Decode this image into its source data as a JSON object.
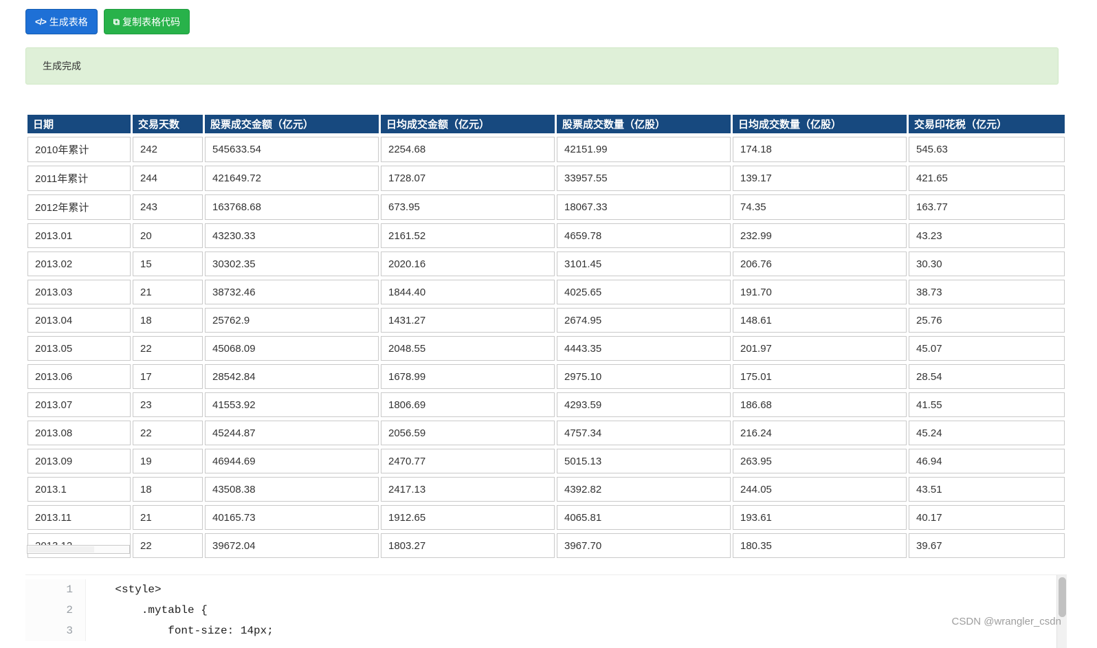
{
  "toolbar": {
    "generate_icon": "</>",
    "generate_label": "生成表格",
    "copy_icon": "⧉",
    "copy_label": "复制表格代码"
  },
  "alert": {
    "message": "生成完成"
  },
  "table": {
    "headers": [
      "日期",
      "交易天数",
      "股票成交金额（亿元）",
      "日均成交金额（亿元）",
      "股票成交数量（亿股）",
      "日均成交数量（亿股）",
      "交易印花税（亿元）"
    ],
    "rows": [
      [
        "2010年累计",
        "242",
        "545633.54",
        "2254.68",
        "42151.99",
        "174.18",
        "545.63"
      ],
      [
        "2011年累计",
        "244",
        "421649.72",
        "1728.07",
        "33957.55",
        "139.17",
        "421.65"
      ],
      [
        "2012年累计",
        "243",
        "163768.68",
        "673.95",
        "18067.33",
        "74.35",
        "163.77"
      ],
      [
        "2013.01",
        "20",
        "43230.33",
        "2161.52",
        "4659.78",
        "232.99",
        "43.23"
      ],
      [
        "2013.02",
        "15",
        "30302.35",
        "2020.16",
        "3101.45",
        "206.76",
        "30.30"
      ],
      [
        "2013.03",
        "21",
        "38732.46",
        "1844.40",
        "4025.65",
        "191.70",
        "38.73"
      ],
      [
        "2013.04",
        "18",
        "25762.9",
        "1431.27",
        "2674.95",
        "148.61",
        "25.76"
      ],
      [
        "2013.05",
        "22",
        "45068.09",
        "2048.55",
        "4443.35",
        "201.97",
        "45.07"
      ],
      [
        "2013.06",
        "17",
        "28542.84",
        "1678.99",
        "2975.10",
        "175.01",
        "28.54"
      ],
      [
        "2013.07",
        "23",
        "41553.92",
        "1806.69",
        "4293.59",
        "186.68",
        "41.55"
      ],
      [
        "2013.08",
        "22",
        "45244.87",
        "2056.59",
        "4757.34",
        "216.24",
        "45.24"
      ],
      [
        "2013.09",
        "19",
        "46944.69",
        "2470.77",
        "5015.13",
        "263.95",
        "46.94"
      ],
      [
        "2013.1",
        "18",
        "43508.38",
        "2417.13",
        "4392.82",
        "244.05",
        "43.51"
      ],
      [
        "2013.11",
        "21",
        "40165.73",
        "1912.65",
        "4065.81",
        "193.61",
        "40.17"
      ],
      [
        "2013.12",
        "22",
        "39672.04",
        "1803.27",
        "3967.70",
        "180.35",
        "39.67"
      ]
    ]
  },
  "code_editor": {
    "lines": [
      {
        "number": "1",
        "code": "    <style>"
      },
      {
        "number": "2",
        "code": "        .mytable {"
      },
      {
        "number": "3",
        "code": "            font-size: 14px;"
      }
    ]
  },
  "watermark": "CSDN @wrangler_csdn",
  "colors": {
    "accent_blue": "#1e70d6",
    "accent_blue_border": "#155cb0",
    "accent_green": "#28b24a",
    "accent_green_border": "#1f9c3e",
    "alert_bg": "#dff0d8",
    "alert_border": "#cfe8c5",
    "header_bg": "#17497f"
  }
}
